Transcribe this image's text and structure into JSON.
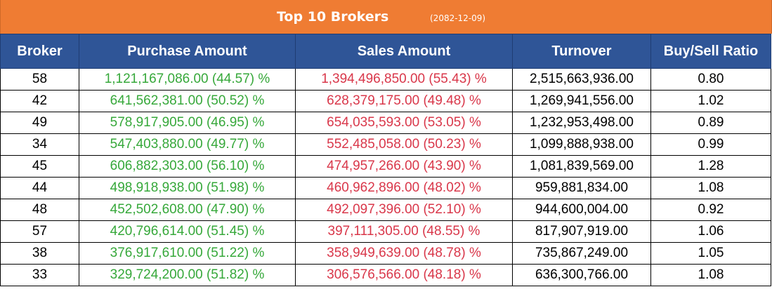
{
  "header": {
    "title": "Top 10 Brokers",
    "date": "(2082-12-09)"
  },
  "colors": {
    "title_background": "#ef7c33",
    "header_background": "#2f5597",
    "purchase_text": "#36a83a",
    "sales_text": "#d9374a"
  },
  "table": {
    "columns": {
      "broker": "Broker",
      "purchase": "Purchase Amount",
      "sales": "Sales Amount",
      "turnover": "Turnover",
      "ratio": "Buy/Sell Ratio"
    },
    "rows": [
      {
        "broker": "58",
        "purchase": "1,121,167,086.00 (44.57) %",
        "sales": "1,394,496,850.00 (55.43) %",
        "turnover": "2,515,663,936.00",
        "ratio": "0.80"
      },
      {
        "broker": "42",
        "purchase": "641,562,381.00 (50.52) %",
        "sales": "628,379,175.00 (49.48) %",
        "turnover": "1,269,941,556.00",
        "ratio": "1.02"
      },
      {
        "broker": "49",
        "purchase": "578,917,905.00 (46.95) %",
        "sales": "654,035,593.00 (53.05) %",
        "turnover": "1,232,953,498.00",
        "ratio": "0.89"
      },
      {
        "broker": "34",
        "purchase": "547,403,880.00 (49.77) %",
        "sales": "552,485,058.00 (50.23) %",
        "turnover": "1,099,888,938.00",
        "ratio": "0.99"
      },
      {
        "broker": "45",
        "purchase": "606,882,303.00 (56.10) %",
        "sales": "474,957,266.00 (43.90) %",
        "turnover": "1,081,839,569.00",
        "ratio": "1.28"
      },
      {
        "broker": "44",
        "purchase": "498,918,938.00 (51.98) %",
        "sales": "460,962,896.00 (48.02) %",
        "turnover": "959,881,834.00",
        "ratio": "1.08"
      },
      {
        "broker": "48",
        "purchase": "452,502,608.00 (47.90) %",
        "sales": "492,097,396.00 (52.10) %",
        "turnover": "944,600,004.00",
        "ratio": "0.92"
      },
      {
        "broker": "57",
        "purchase": "420,796,614.00 (51.45) %",
        "sales": "397,111,305.00 (48.55) %",
        "turnover": "817,907,919.00",
        "ratio": "1.06"
      },
      {
        "broker": "38",
        "purchase": "376,917,610.00 (51.22) %",
        "sales": "358,949,639.00 (48.78) %",
        "turnover": "735,867,249.00",
        "ratio": "1.05"
      },
      {
        "broker": "33",
        "purchase": "329,724,200.00 (51.82) %",
        "sales": "306,576,566.00 (48.18) %",
        "turnover": "636,300,766.00",
        "ratio": "1.08"
      }
    ]
  }
}
